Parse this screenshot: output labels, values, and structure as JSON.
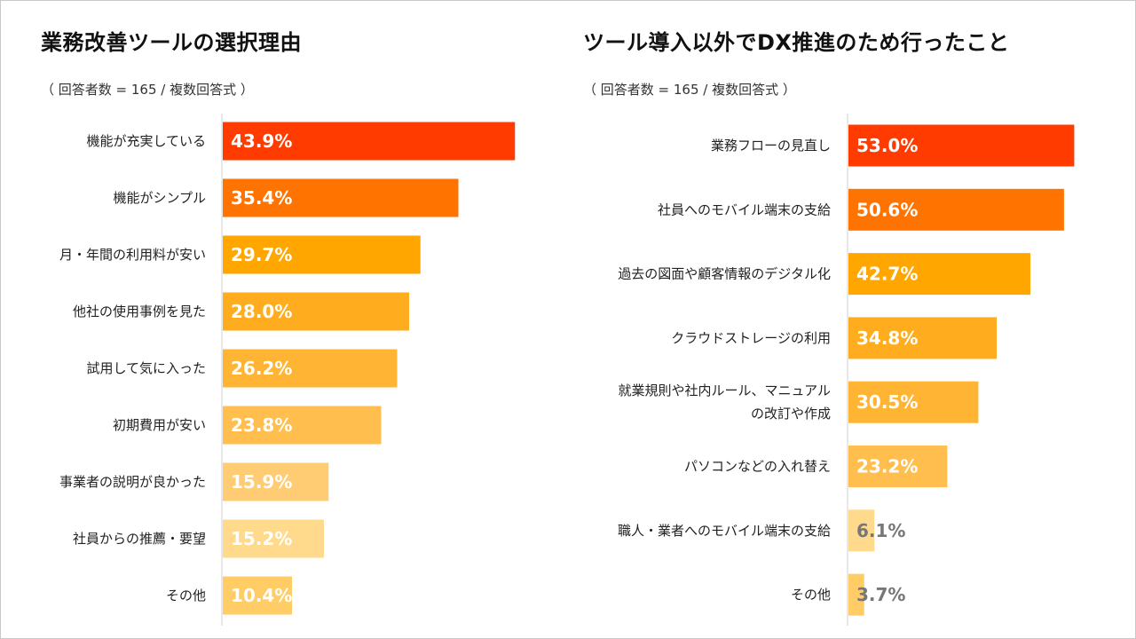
{
  "chart_data": [
    {
      "type": "bar",
      "orientation": "horizontal",
      "title": "業務改善ツールの選択理由",
      "subtitle": "（ 回答者数 = 165 / 複数回答式 ）",
      "categories": [
        "機能が充実している",
        "機能がシンプル",
        "月・年間の利用料が安い",
        "他社の使用事例を見た",
        "試用して気に入った",
        "初期費用が安い",
        "事業者の説明が良かった",
        "社員からの推薦・要望",
        "その他"
      ],
      "values": [
        43.9,
        35.4,
        29.7,
        28.0,
        26.2,
        23.8,
        15.9,
        15.2,
        10.4
      ],
      "labels": [
        "43.9%",
        "35.4%",
        "29.7%",
        "28.0%",
        "26.2%",
        "23.8%",
        "15.9%",
        "15.2%",
        "10.4%"
      ],
      "colors": [
        "#ff3b00",
        "#ff7300",
        "#ffa600",
        "#ffad1f",
        "#ffb533",
        "#ffbe4d",
        "#ffcc73",
        "#ffd98c",
        "#ffcc66"
      ],
      "label_colors": [
        "#ffffff",
        "#ffffff",
        "#ffffff",
        "#ffffff",
        "#ffffff",
        "#ffffff",
        "#ffffff",
        "#ffffff",
        "#ffffff"
      ],
      "xlim": [
        0,
        60
      ]
    },
    {
      "type": "bar",
      "orientation": "horizontal",
      "title": "ツール導入以外でDX推進のため行ったこと",
      "subtitle": "（ 回答者数 = 165 / 複数回答式 ）",
      "categories": [
        [
          "業務フローの見直し"
        ],
        [
          "社員へのモバイル端末の支給"
        ],
        [
          "過去の図面や顧客情報のデジタル化"
        ],
        [
          "クラウドストレージの利用"
        ],
        [
          "就業規則や社内ルール、マニュアル",
          "の改訂や作成"
        ],
        [
          "パソコンなどの入れ替え"
        ],
        [
          "職人・業者へのモバイル端末の支給"
        ],
        [
          "その他"
        ]
      ],
      "values": [
        53.0,
        50.6,
        42.7,
        34.8,
        30.5,
        23.2,
        6.1,
        3.7
      ],
      "labels": [
        "53.0%",
        "50.6%",
        "42.7%",
        "34.8%",
        "30.5%",
        "23.2%",
        "6.1%",
        "3.7%"
      ],
      "colors": [
        "#ff3b00",
        "#ff7300",
        "#ffa600",
        "#ffad1f",
        "#ffb533",
        "#ffbe4d",
        "#ffd98c",
        "#ffcc66"
      ],
      "label_colors": [
        "#ffffff",
        "#ffffff",
        "#ffffff",
        "#ffffff",
        "#ffffff",
        "#ffffff",
        "#777777",
        "#777777"
      ],
      "xlim": [
        0,
        60
      ]
    }
  ]
}
